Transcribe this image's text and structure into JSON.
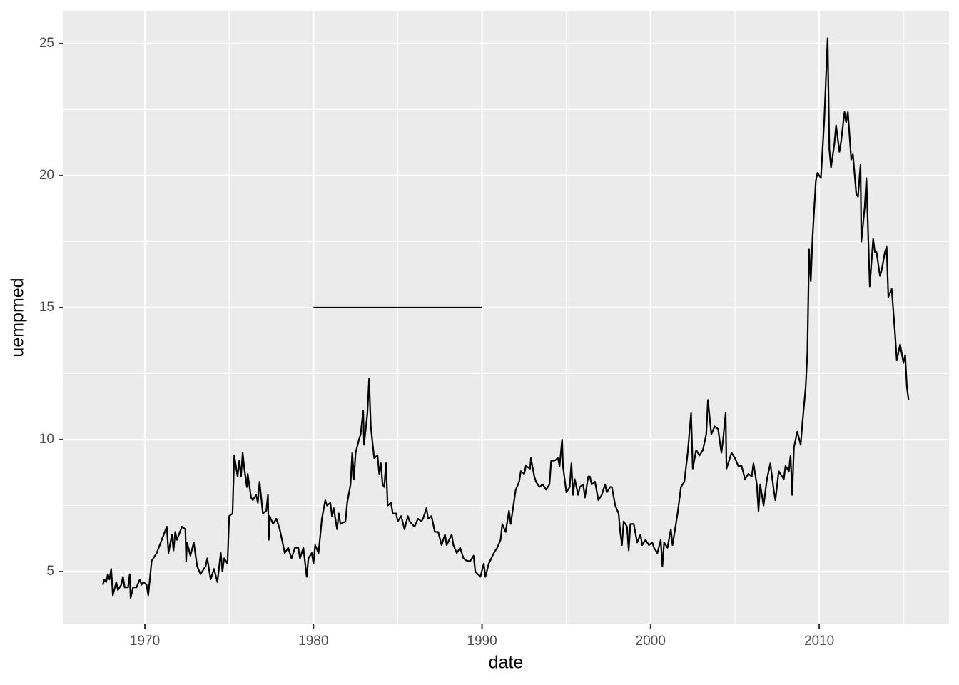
{
  "chart_data": {
    "type": "line",
    "x_label": "date",
    "y_label": "uempmed",
    "color": "#000000",
    "x": [
      1967.5,
      1967.6,
      1967.7,
      1967.8,
      1967.9,
      1968.0,
      1968.1,
      1968.3,
      1968.4,
      1968.6,
      1968.7,
      1968.8,
      1969.0,
      1969.1,
      1969.15,
      1969.3,
      1969.5,
      1969.7,
      1969.8,
      1969.9,
      1970.1,
      1970.2,
      1970.4,
      1970.7,
      1971.0,
      1971.3,
      1971.4,
      1971.6,
      1971.7,
      1971.8,
      1971.9,
      1972.2,
      1972.4,
      1972.45,
      1972.5,
      1972.7,
      1972.9,
      1973.1,
      1973.3,
      1973.6,
      1973.7,
      1973.9,
      1974.1,
      1974.3,
      1974.5,
      1974.6,
      1974.7,
      1974.9,
      1975.0,
      1975.2,
      1975.3,
      1975.5,
      1975.6,
      1975.7,
      1975.8,
      1975.9,
      1976.05,
      1976.1,
      1976.3,
      1976.4,
      1976.6,
      1976.7,
      1976.8,
      1977.0,
      1977.2,
      1977.3,
      1977.35,
      1977.4,
      1977.6,
      1977.8,
      1978.0,
      1978.2,
      1978.3,
      1978.5,
      1978.7,
      1978.9,
      1979.1,
      1979.2,
      1979.4,
      1979.6,
      1979.7,
      1979.9,
      1980.0,
      1980.1,
      1980.3,
      1980.5,
      1980.7,
      1980.8,
      1981.0,
      1981.1,
      1981.2,
      1981.4,
      1981.5,
      1981.6,
      1981.9,
      1982.0,
      1982.2,
      1982.3,
      1982.4,
      1982.5,
      1982.7,
      1982.8,
      1982.95,
      1983.0,
      1983.2,
      1983.3,
      1983.4,
      1983.6,
      1983.8,
      1983.9,
      1984.0,
      1984.1,
      1984.2,
      1984.3,
      1984.4,
      1984.6,
      1984.7,
      1984.9,
      1985.0,
      1985.2,
      1985.4,
      1985.6,
      1985.7,
      1986.0,
      1986.2,
      1986.4,
      1986.5,
      1986.7,
      1986.8,
      1987.0,
      1987.2,
      1987.4,
      1987.6,
      1987.8,
      1987.9,
      1988.2,
      1988.3,
      1988.5,
      1988.7,
      1988.9,
      1989.1,
      1989.3,
      1989.5,
      1989.6,
      1989.9,
      1990.1,
      1990.2,
      1990.4,
      1990.7,
      1990.9,
      1991.1,
      1991.2,
      1991.4,
      1991.6,
      1991.7,
      1992.0,
      1992.2,
      1992.3,
      1992.5,
      1992.6,
      1992.85,
      1992.9,
      1993.1,
      1993.2,
      1993.4,
      1993.6,
      1993.8,
      1994.0,
      1994.1,
      1994.3,
      1994.5,
      1994.6,
      1994.75,
      1994.8,
      1995.0,
      1995.2,
      1995.3,
      1995.4,
      1995.5,
      1995.7,
      1995.8,
      1996.0,
      1996.1,
      1996.3,
      1996.4,
      1996.5,
      1996.7,
      1996.9,
      1997.1,
      1997.3,
      1997.4,
      1997.6,
      1997.7,
      1997.9,
      1998.1,
      1998.2,
      1998.3,
      1998.4,
      1998.6,
      1998.7,
      1998.8,
      1999.0,
      1999.2,
      1999.4,
      1999.5,
      1999.7,
      1999.9,
      2000.1,
      2000.2,
      2000.4,
      2000.6,
      2000.7,
      2000.8,
      2001.0,
      2001.2,
      2001.3,
      2001.5,
      2001.6,
      2001.8,
      2002.0,
      2002.2,
      2002.4,
      2002.5,
      2002.7,
      2002.9,
      2003.1,
      2003.3,
      2003.4,
      2003.6,
      2003.8,
      2004.0,
      2004.2,
      2004.3,
      2004.45,
      2004.5,
      2004.8,
      2005.0,
      2005.2,
      2005.4,
      2005.6,
      2005.8,
      2006.0,
      2006.1,
      2006.3,
      2006.4,
      2006.5,
      2006.7,
      2006.9,
      2007.1,
      2007.3,
      2007.4,
      2007.6,
      2007.8,
      2007.9,
      2008.0,
      2008.2,
      2008.3,
      2008.4,
      2008.5,
      2008.7,
      2008.9,
      2009.0,
      2009.2,
      2009.3,
      2009.4,
      2009.5,
      2009.6,
      2009.8,
      2009.9,
      2010.1,
      2010.3,
      2010.5,
      2010.6,
      2010.7,
      2010.9,
      2011.0,
      2011.2,
      2011.3,
      2011.5,
      2011.6,
      2011.7,
      2011.9,
      2012.0,
      2012.2,
      2012.3,
      2012.45,
      2012.5,
      2012.7,
      2012.8,
      2013.0,
      2013.2,
      2013.3,
      2013.4,
      2013.6,
      2013.7,
      2013.9,
      2014.0,
      2014.1,
      2014.3,
      2014.5,
      2014.6,
      2014.8,
      2015.0,
      2015.1,
      2015.2,
      2015.3
    ],
    "values": [
      4.5,
      4.7,
      4.6,
      4.9,
      4.7,
      5.1,
      4.1,
      4.6,
      4.3,
      4.5,
      4.8,
      4.4,
      4.4,
      4.9,
      4.0,
      4.4,
      4.4,
      4.7,
      4.5,
      4.6,
      4.5,
      4.1,
      5.4,
      5.7,
      6.2,
      6.7,
      5.7,
      6.4,
      5.8,
      6.5,
      6.2,
      6.7,
      6.6,
      5.4,
      6.1,
      5.6,
      6.1,
      5.2,
      4.9,
      5.2,
      5.5,
      4.7,
      5.1,
      4.6,
      5.7,
      5.0,
      5.5,
      5.3,
      7.1,
      7.2,
      9.4,
      8.6,
      9.2,
      8.6,
      9.5,
      8.9,
      8.2,
      8.7,
      7.8,
      7.7,
      7.9,
      7.6,
      8.4,
      7.2,
      7.3,
      7.9,
      6.2,
      7.1,
      6.8,
      7.0,
      6.6,
      6.0,
      5.7,
      5.9,
      5.5,
      5.9,
      5.9,
      5.5,
      5.9,
      4.8,
      5.5,
      5.7,
      5.3,
      6.0,
      5.7,
      7.0,
      7.7,
      7.5,
      7.6,
      7.1,
      7.4,
      6.6,
      7.2,
      6.8,
      6.9,
      7.6,
      8.3,
      9.5,
      8.5,
      9.5,
      10.0,
      10.2,
      11.1,
      9.8,
      11.0,
      12.3,
      10.5,
      9.3,
      9.4,
      8.7,
      9.1,
      8.3,
      8.2,
      9.1,
      7.5,
      7.6,
      7.2,
      7.2,
      6.9,
      7.1,
      6.6,
      7.1,
      6.9,
      6.7,
      7.0,
      6.9,
      7.0,
      7.4,
      7.0,
      7.1,
      6.5,
      6.5,
      6.0,
      6.4,
      6.0,
      6.4,
      6.0,
      5.7,
      5.9,
      5.5,
      5.4,
      5.4,
      5.6,
      5.0,
      4.8,
      5.3,
      4.8,
      5.3,
      5.7,
      5.9,
      6.2,
      6.8,
      6.5,
      7.3,
      6.8,
      8.1,
      8.4,
      8.8,
      8.7,
      9.0,
      8.9,
      9.3,
      8.6,
      8.4,
      8.2,
      8.3,
      8.1,
      8.3,
      9.2,
      9.2,
      9.3,
      9.0,
      10.0,
      9.0,
      8.0,
      8.2,
      9.1,
      7.9,
      8.5,
      7.9,
      8.2,
      8.3,
      7.8,
      8.6,
      8.6,
      8.3,
      8.4,
      7.7,
      7.9,
      8.3,
      8.0,
      8.2,
      8.2,
      7.5,
      7.2,
      6.5,
      6.0,
      6.9,
      6.7,
      5.8,
      6.8,
      6.8,
      6.1,
      6.4,
      6.0,
      6.2,
      6.0,
      6.1,
      5.9,
      5.7,
      6.2,
      5.2,
      6.1,
      5.9,
      6.6,
      6.0,
      6.8,
      7.2,
      8.2,
      8.4,
      9.5,
      11.0,
      8.9,
      9.6,
      9.4,
      9.6,
      10.2,
      11.5,
      10.2,
      10.5,
      10.4,
      9.5,
      10.0,
      11.0,
      8.9,
      9.5,
      9.3,
      9.0,
      9.0,
      8.5,
      8.7,
      8.6,
      9.1,
      8.3,
      7.3,
      8.3,
      7.5,
      8.5,
      9.1,
      8.1,
      7.7,
      8.8,
      8.6,
      8.5,
      9.0,
      8.8,
      9.4,
      7.9,
      9.7,
      10.3,
      9.8,
      10.6,
      12.0,
      13.3,
      17.2,
      16.0,
      17.6,
      19.8,
      20.1,
      19.9,
      22.1,
      25.2,
      21.0,
      20.3,
      21.2,
      21.9,
      20.9,
      21.3,
      22.4,
      22.0,
      22.4,
      20.6,
      20.8,
      19.3,
      19.2,
      20.4,
      17.5,
      18.8,
      19.9,
      15.8,
      17.6,
      17.1,
      17.1,
      16.2,
      16.4,
      17.1,
      17.3,
      15.4,
      15.7,
      14.0,
      13.0,
      13.6,
      12.9,
      13.2,
      12.0,
      11.5
    ],
    "segments": [
      {
        "x": [
          1980,
          1990
        ],
        "values": [
          15,
          15
        ]
      }
    ],
    "xlim": [
      1965.13,
      2017.7
    ],
    "ylim": [
      3.0,
      26.24
    ],
    "xticks": [
      1970,
      1980,
      1990,
      2000,
      2010
    ],
    "yticks": [
      5,
      10,
      15,
      20,
      25
    ],
    "x_minor_breaks": [
      1975,
      1985,
      1995,
      2005,
      2015
    ],
    "y_minor_breaks": [
      7.5,
      12.5,
      17.5,
      22.5
    ],
    "grid": true
  }
}
